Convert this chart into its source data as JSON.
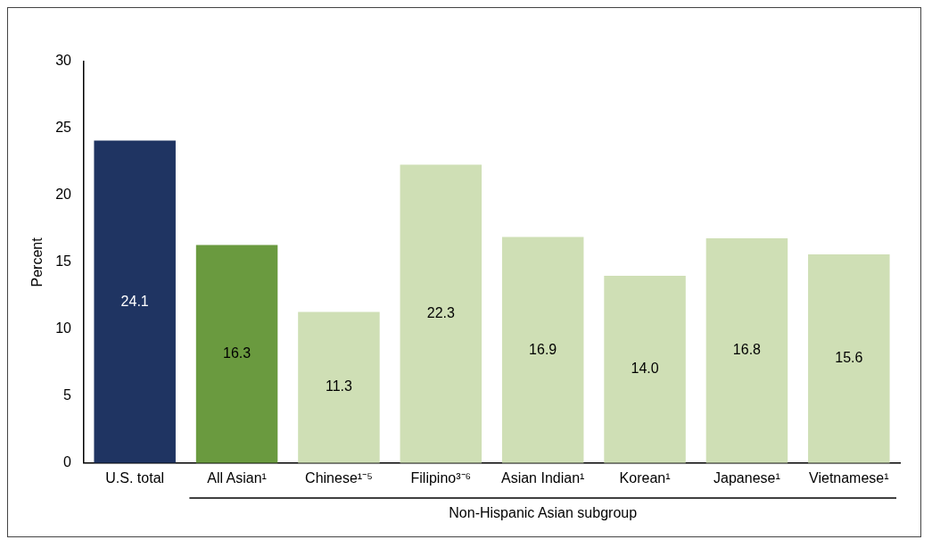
{
  "chart_data": {
    "type": "bar",
    "ylabel": "Percent",
    "xlabel": "Non-Hispanic Asian subgroup",
    "categories": [
      "U.S. total",
      "All Asian¹",
      "Chinese¹⁻⁵",
      "Filipino³⁻⁶",
      "Asian Indian¹",
      "Korean¹",
      "Japanese¹",
      "Vietnamese¹"
    ],
    "values": [
      24.1,
      16.3,
      11.3,
      22.3,
      16.9,
      14.0,
      16.8,
      15.6
    ],
    "value_labels": [
      "24.1",
      "16.3",
      "11.3",
      "22.3",
      "16.9",
      "14.0",
      "16.8",
      "15.6"
    ],
    "colors": [
      "#1f3462",
      "#6a9a3f",
      "#cfdfb5",
      "#cfdfb5",
      "#cfdfb5",
      "#cfdfb5",
      "#cfdfb5",
      "#cfdfb5"
    ],
    "ylim": [
      0,
      30
    ],
    "yticks": [
      0,
      5,
      10,
      15,
      20,
      25,
      30
    ],
    "grid": false,
    "legend": false
  }
}
